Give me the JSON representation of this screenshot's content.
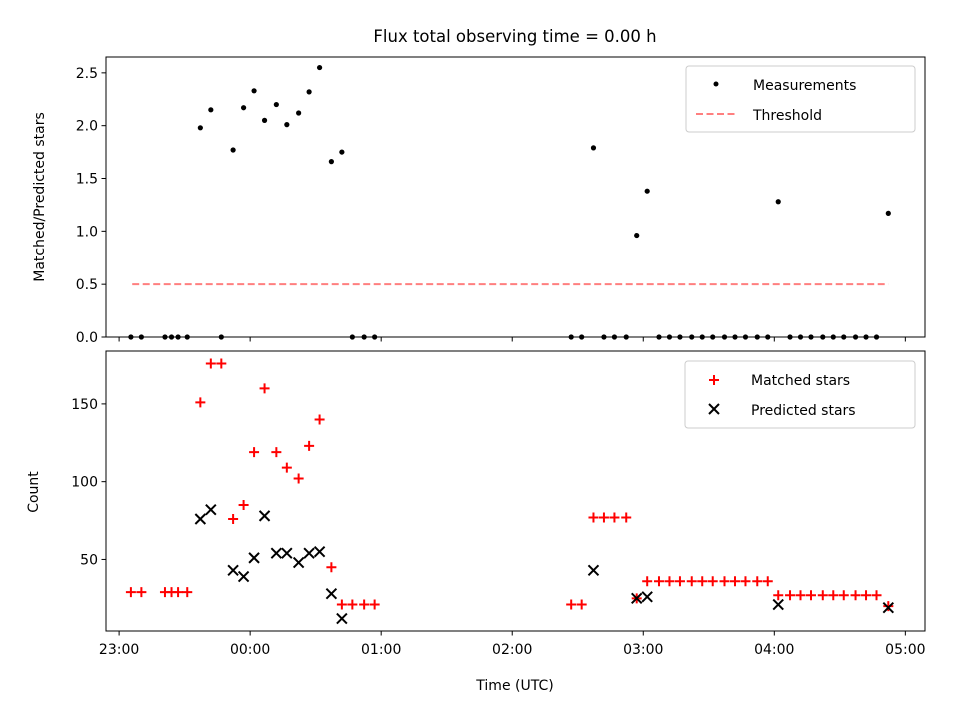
{
  "chart_data": [
    {
      "type": "scatter",
      "title": "Flux total observing time = 0.00 h",
      "xlabel": "",
      "ylabel": "Matched/Predicted stars",
      "xlim": [
        -1.1,
        5.15
      ],
      "ylim": [
        0.0,
        2.65
      ],
      "xticks": [
        -1,
        0,
        1,
        2,
        3,
        4,
        5
      ],
      "yticks": [
        0.0,
        0.5,
        1.0,
        1.5,
        2.0,
        2.5
      ],
      "ytick_labels": [
        "0.0",
        "0.5",
        "1.0",
        "1.5",
        "2.0",
        "2.5"
      ],
      "legend_position": "upper right",
      "series": [
        {
          "name": "Measurements",
          "kind": "point",
          "color": "#000000",
          "x": [
            -0.91,
            -0.83,
            -0.65,
            -0.6,
            -0.55,
            -0.48,
            -0.38,
            -0.3,
            -0.22,
            -0.13,
            -0.05,
            0.03,
            0.11,
            0.2,
            0.28,
            0.37,
            0.45,
            0.53,
            0.62,
            0.7,
            0.78,
            0.87,
            0.95,
            2.45,
            2.53,
            2.62,
            2.7,
            2.78,
            2.87,
            2.95,
            3.03,
            3.12,
            3.2,
            3.28,
            3.37,
            3.45,
            3.53,
            3.62,
            3.7,
            3.78,
            3.87,
            3.95,
            4.03,
            4.12,
            4.2,
            4.28,
            4.37,
            4.45,
            4.53,
            4.62,
            4.7,
            4.78,
            4.87
          ],
          "y": [
            0,
            0,
            0,
            0,
            0,
            0,
            1.98,
            2.15,
            0,
            1.77,
            2.17,
            2.33,
            2.05,
            2.2,
            2.01,
            2.12,
            2.32,
            2.55,
            1.66,
            1.75,
            0,
            0,
            0,
            0,
            0,
            1.79,
            0,
            0,
            0,
            0.96,
            1.38,
            0,
            0,
            0,
            0,
            0,
            0,
            0,
            0,
            0,
            0,
            0,
            1.28,
            0,
            0,
            0,
            0,
            0,
            0,
            0,
            0,
            0,
            1.17
          ]
        },
        {
          "name": "Threshold",
          "kind": "dashed-line",
          "color": "#ff7f7f",
          "x": [
            -0.9,
            4.87
          ],
          "y": [
            0.5,
            0.5
          ]
        }
      ]
    },
    {
      "type": "scatter",
      "title": "",
      "xlabel": "Time (UTC)",
      "ylabel": "Count",
      "xlim": [
        -1.1,
        5.15
      ],
      "ylim": [
        4,
        184
      ],
      "xticks": [
        -1,
        0,
        1,
        2,
        3,
        4,
        5
      ],
      "xtick_labels": [
        "23:00",
        "00:00",
        "01:00",
        "02:00",
        "03:00",
        "04:00",
        "05:00"
      ],
      "yticks": [
        50,
        100,
        150
      ],
      "ytick_labels": [
        "50",
        "100",
        "150"
      ],
      "legend_position": "upper right",
      "series": [
        {
          "name": "Matched stars",
          "kind": "plus",
          "color": "#ff0000",
          "x": [
            -0.91,
            -0.83,
            -0.65,
            -0.6,
            -0.55,
            -0.48,
            -0.38,
            -0.3,
            -0.22,
            -0.13,
            -0.05,
            0.03,
            0.11,
            0.2,
            0.28,
            0.37,
            0.45,
            0.53,
            0.62,
            0.7,
            0.78,
            0.87,
            0.95,
            2.45,
            2.53,
            2.62,
            2.7,
            2.78,
            2.87,
            2.95,
            3.03,
            3.12,
            3.2,
            3.28,
            3.37,
            3.45,
            3.53,
            3.62,
            3.7,
            3.78,
            3.87,
            3.95,
            4.03,
            4.12,
            4.2,
            4.28,
            4.37,
            4.45,
            4.53,
            4.62,
            4.7,
            4.78,
            4.87
          ],
          "y": [
            29,
            29,
            29,
            29,
            29,
            29,
            151,
            176,
            176,
            76,
            85,
            119,
            160,
            119,
            109,
            102,
            123,
            140,
            45,
            21,
            21,
            21,
            21,
            21,
            21,
            77,
            77,
            77,
            77,
            25,
            36,
            36,
            36,
            36,
            36,
            36,
            36,
            36,
            36,
            36,
            36,
            36,
            27,
            27,
            27,
            27,
            27,
            27,
            27,
            27,
            27,
            27,
            20
          ]
        },
        {
          "name": "Predicted stars",
          "kind": "x",
          "color": "#000000",
          "x": [
            -0.38,
            -0.3,
            -0.13,
            -0.05,
            0.03,
            0.11,
            0.2,
            0.28,
            0.37,
            0.45,
            0.53,
            0.62,
            0.7,
            2.62,
            2.95,
            3.03,
            4.03,
            4.87
          ],
          "y": [
            76,
            82,
            43,
            39,
            51,
            78,
            54,
            54,
            48,
            54,
            55,
            28,
            12,
            43,
            25,
            26,
            21,
            19
          ]
        }
      ]
    }
  ]
}
